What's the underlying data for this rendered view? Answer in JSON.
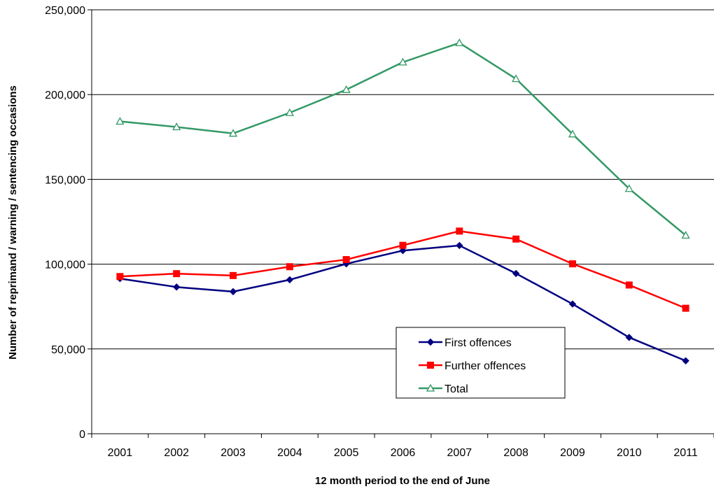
{
  "chart_data": {
    "type": "line",
    "title": "",
    "xlabel": "12 month period to the end of June",
    "ylabel": "Number of reprimand / warning / sentencing occasions",
    "x": [
      "2001",
      "2002",
      "2003",
      "2004",
      "2005",
      "2006",
      "2007",
      "2008",
      "2009",
      "2010",
      "2011"
    ],
    "ylim": [
      0,
      250000
    ],
    "yticks": [
      0,
      50000,
      100000,
      150000,
      200000,
      250000
    ],
    "ytick_labels": [
      "0",
      "50,000",
      "100,000",
      "150,000",
      "200,000",
      "250,000"
    ],
    "grid": "horizontal",
    "legend_position": "lower-center-right",
    "series": [
      {
        "name": "First offences",
        "color": "#000080",
        "marker": "diamond",
        "values": [
          91500,
          86500,
          83800,
          90800,
          100200,
          108000,
          111000,
          94500,
          76500,
          56800,
          43000
        ]
      },
      {
        "name": "Further offences",
        "color": "#ff0000",
        "marker": "square",
        "values": [
          92700,
          94400,
          93300,
          98500,
          102700,
          111100,
          119500,
          114800,
          100200,
          87700,
          74000
        ]
      },
      {
        "name": "Total",
        "color": "#339966",
        "marker": "triangle-open",
        "values": [
          184200,
          180900,
          177100,
          189300,
          202900,
          219100,
          230500,
          209300,
          176700,
          144500,
          117000
        ]
      }
    ]
  }
}
